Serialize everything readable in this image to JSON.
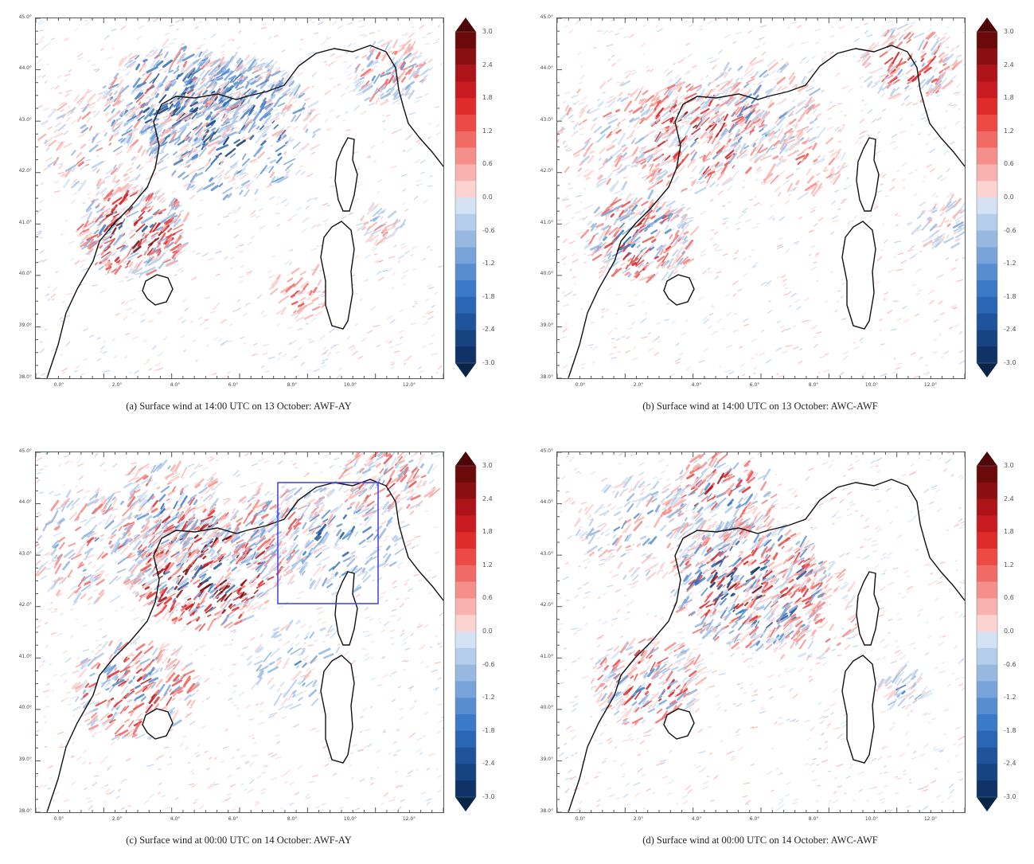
{
  "colorbar": {
    "labels": [
      "3.0",
      "2.4",
      "1.8",
      "1.2",
      "0.6",
      "0.0",
      "-0.6",
      "-1.2",
      "-1.8",
      "-2.4",
      "-3.0"
    ],
    "colors_positive": [
      "#6b0a0a",
      "#8a0f12",
      "#ad141a",
      "#c91c22",
      "#e02b2b",
      "#ec4a45",
      "#f06a66",
      "#f48f8b",
      "#f8b2af",
      "#fbd3d1"
    ],
    "colors_negative": [
      "#d4e2f3",
      "#b5cdea",
      "#96b8e1",
      "#77a3d8",
      "#588ecf",
      "#3b7ac6",
      "#2a66b2",
      "#1f549a",
      "#174380",
      "#0f3366"
    ],
    "neutral": "#ffffff"
  },
  "axes": {
    "lat_ticks": [
      "45.0°",
      "44.0°",
      "43.0°",
      "42.0°",
      "41.0°",
      "40.0°",
      "39.0°",
      "38.0°"
    ],
    "lon_ticks": [
      "0.0°",
      "2.0°",
      "4.0°",
      "6.0°",
      "8.0°",
      "10.0°",
      "12.0°"
    ]
  },
  "panels": [
    {
      "caption": "(a) Surface wind at 14:00 UTC on 13 October: AWF-AY"
    },
    {
      "caption": "(b) Surface wind at 14:00 UTC on 13 October: AWC-AWF"
    },
    {
      "caption": "(c) Surface wind at 00:00 UTC on 14 October: AWF-AY"
    },
    {
      "caption": "(d) Surface wind at 00:00 UTC on 14 October: AWC-AWF"
    }
  ],
  "box_color": "#4a4ae6",
  "coastline_color": "#111111"
}
